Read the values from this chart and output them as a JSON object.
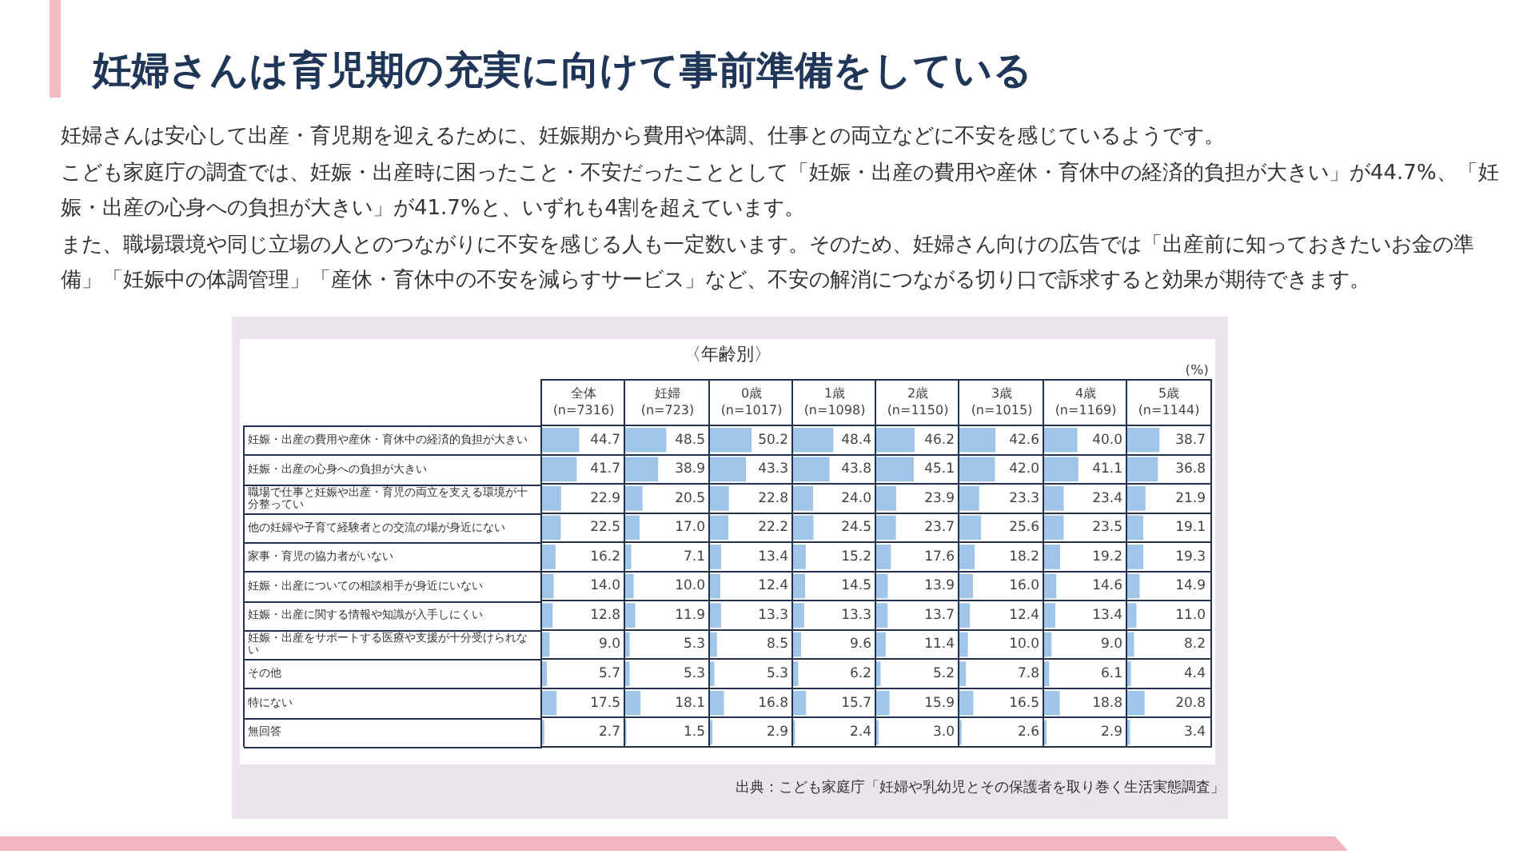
{
  "chart_data": [
    {
      "type": "other",
      "title": "妊婦さんは育児期の充実に向けて事前準備をしている",
      "annotations": [
        "妊婦さんは安心して出産・育児期を迎えるために、妊娠期から費用や体調、仕事との両立などに不安を感じているようです。",
        "こども家庭庁の調査では、妊娠・出産時に困ったこと・不安だったこととして「妊娠・出産の費用や産休・育休中の経済的負担が大きい」が44.7%、「妊娠・出産の心身への負担が大きい」が41.7%と、いずれも4割を超えています。",
        "また、職場環境や同じ立場の人とのつながりに不安を感じる人も一定数います。そのため、妊婦さん向けの広告では「出産前に知っておきたいお金の準備」「妊娠中の体調管理」「産休・育休中の不安を減らすサービス」など、不安の解消につながる切り口で訴求すると効果が期待できます。"
      ]
    },
    {
      "type": "other",
      "title": "〈年齢別〉",
      "annotations": [
        "出典：こども家庭庁「妊婦や乳幼児とその保護者を取り巻く生活実態調査」"
      ]
    },
    {
      "type": "bar",
      "orientation": "horizontal",
      "title": "全体 (n=7316)",
      "categories": [
        "妊娠・出産の費用や産休・育休中の経済的負担が大きい",
        "妊娠・出産の心身への負担が大きい",
        "職場で仕事と妊娠や出産・育児の両立を支える環境が十分整ってい",
        "他の妊婦や子育て経験者との交流の場が身近にない",
        "家事・育児の協力者がいない",
        "妊娠・出産についての相談相手が身近にいない",
        "妊娠・出産に関する情報や知識が入手しにくい",
        "妊娠・出産をサポートする医療や支援が十分受けられない",
        "その他",
        "特にない",
        "無回答"
      ],
      "color": "#9fc5e8",
      "values": [
        44.7,
        41.7,
        22.9,
        22.5,
        16.2,
        14.0,
        12.8,
        9.0,
        5.7,
        17.5,
        2.7
      ],
      "value_labels": [
        "44.7",
        "41.7",
        "22.9",
        "22.5",
        "16.2",
        "14.0",
        "12.8",
        "9.0",
        "5.7",
        "17.5",
        "2.7"
      ],
      "xlim": [
        0,
        100
      ],
      "grid": true,
      "tick_labels": "y"
    },
    {
      "type": "bar",
      "orientation": "horizontal",
      "title": "妊婦 (n=723)",
      "categories": [
        null,
        null,
        null,
        null,
        null,
        null,
        null,
        null,
        null,
        null,
        null
      ],
      "color": "#9fc5e8",
      "values": [
        48.5,
        38.9,
        20.5,
        17.0,
        7.1,
        10.0,
        11.9,
        5.3,
        5.3,
        18.1,
        1.5
      ],
      "value_labels": [
        "48.5",
        "38.9",
        "20.5",
        "17.0",
        "7.1",
        "10.0",
        "11.9",
        "5.3",
        "5.3",
        "18.1",
        "1.5"
      ],
      "xlim": [
        0,
        100
      ],
      "grid": true,
      "tick_labels": false
    },
    {
      "type": "bar",
      "orientation": "horizontal",
      "title": "0歳 (n=1017)",
      "categories": [
        null,
        null,
        null,
        null,
        null,
        null,
        null,
        null,
        null,
        null,
        null
      ],
      "color": "#9fc5e8",
      "values": [
        50.2,
        43.3,
        22.8,
        22.2,
        13.4,
        12.4,
        13.3,
        8.5,
        5.3,
        16.8,
        2.9
      ],
      "value_labels": [
        "50.2",
        "43.3",
        "22.8",
        "22.2",
        "13.4",
        "12.4",
        "13.3",
        "8.5",
        "5.3",
        "16.8",
        "2.9"
      ],
      "xlim": [
        0,
        100
      ],
      "grid": true,
      "tick_labels": false
    },
    {
      "type": "bar",
      "orientation": "horizontal",
      "title": "1歳 (n=1098)",
      "categories": [
        null,
        null,
        null,
        null,
        null,
        null,
        null,
        null,
        null,
        null,
        null
      ],
      "color": "#9fc5e8",
      "values": [
        48.4,
        43.8,
        24.0,
        24.5,
        15.2,
        14.5,
        13.3,
        9.6,
        6.2,
        15.7,
        2.4
      ],
      "value_labels": [
        "48.4",
        "43.8",
        "24.0",
        "24.5",
        "15.2",
        "14.5",
        "13.3",
        "9.6",
        "6.2",
        "15.7",
        "2.4"
      ],
      "xlim": [
        0,
        100
      ],
      "grid": true,
      "tick_labels": false
    },
    {
      "type": "bar",
      "orientation": "horizontal",
      "title": "2歳 (n=1150)",
      "categories": [
        null,
        null,
        null,
        null,
        null,
        null,
        null,
        null,
        null,
        null,
        null
      ],
      "color": "#9fc5e8",
      "values": [
        46.2,
        45.1,
        23.9,
        23.7,
        17.6,
        13.9,
        13.7,
        11.4,
        5.2,
        15.9,
        3.0
      ],
      "value_labels": [
        "46.2",
        "45.1",
        "23.9",
        "23.7",
        "17.6",
        "13.9",
        "13.7",
        "11.4",
        "5.2",
        "15.9",
        "3.0"
      ],
      "xlim": [
        0,
        100
      ],
      "grid": true,
      "tick_labels": false
    },
    {
      "type": "bar",
      "orientation": "horizontal",
      "title": "3歳 (n=1015)",
      "categories": [
        null,
        null,
        null,
        null,
        null,
        null,
        null,
        null,
        null,
        null,
        null
      ],
      "color": "#9fc5e8",
      "values": [
        42.6,
        42.0,
        23.3,
        25.6,
        18.2,
        16.0,
        12.4,
        10.0,
        7.8,
        16.5,
        2.6
      ],
      "value_labels": [
        "42.6",
        "42.0",
        "23.3",
        "25.6",
        "18.2",
        "16.0",
        "12.4",
        "10.0",
        "7.8",
        "16.5",
        "2.6"
      ],
      "xlim": [
        0,
        100
      ],
      "grid": true,
      "tick_labels": false
    },
    {
      "type": "bar",
      "orientation": "horizontal",
      "title": "4歳 (n=1169)",
      "categories": [
        null,
        null,
        null,
        null,
        null,
        null,
        null,
        null,
        null,
        null,
        null
      ],
      "color": "#9fc5e8",
      "values": [
        40.0,
        41.1,
        23.4,
        23.5,
        19.2,
        14.6,
        13.4,
        9.0,
        6.1,
        18.8,
        2.9
      ],
      "value_labels": [
        "40.0",
        "41.1",
        "23.4",
        "23.5",
        "19.2",
        "14.6",
        "13.4",
        "9.0",
        "6.1",
        "18.8",
        "2.9"
      ],
      "xlim": [
        0,
        100
      ],
      "grid": true,
      "tick_labels": false
    },
    {
      "type": "bar",
      "orientation": "horizontal",
      "title": "5歳 (n=1144)",
      "xlabel": "(%)",
      "categories": [
        null,
        null,
        null,
        null,
        null,
        null,
        null,
        null,
        null,
        null,
        null
      ],
      "color": "#9fc5e8",
      "values": [
        38.7,
        36.8,
        21.9,
        19.1,
        19.3,
        14.9,
        11.0,
        8.2,
        4.4,
        20.8,
        3.4
      ],
      "value_labels": [
        "38.7",
        "36.8",
        "21.9",
        "19.1",
        "19.3",
        "14.9",
        "11.0",
        "8.2",
        "4.4",
        "20.8",
        "3.4"
      ],
      "xlim": [
        0,
        100
      ],
      "grid": true,
      "tick_labels": false
    }
  ]
}
